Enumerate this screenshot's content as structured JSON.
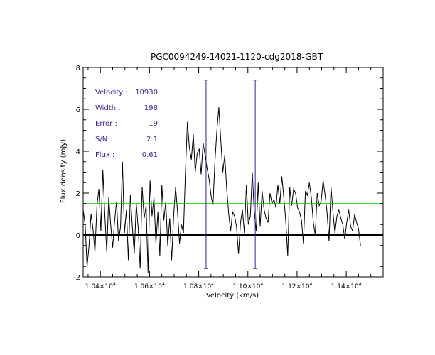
{
  "chart_data": {
    "type": "line",
    "title": "PGC0094249-14021-1120-cdg2018-GBT",
    "xlabel": "Velocity (km/s)",
    "ylabel": "Flux density (mJy)",
    "xlim": [
      10330,
      11550
    ],
    "ylim": [
      -2,
      8
    ],
    "x_ticks": [
      {
        "value": 10400,
        "mantissa": "1.04",
        "exp": "4"
      },
      {
        "value": 10600,
        "mantissa": "1.06",
        "exp": "4"
      },
      {
        "value": 10800,
        "mantissa": "1.08",
        "exp": "4"
      },
      {
        "value": 11000,
        "mantissa": "1.10",
        "exp": "4"
      },
      {
        "value": 11200,
        "mantissa": "1.12",
        "exp": "4"
      },
      {
        "value": 11400,
        "mantissa": "1.14",
        "exp": "4"
      }
    ],
    "y_ticks": [
      -2,
      0,
      2,
      4,
      6,
      8
    ],
    "info": [
      {
        "label": "Velocity :",
        "value": "10930"
      },
      {
        "label": "Width :",
        "value": "198"
      },
      {
        "label": "Error :",
        "value": "19"
      },
      {
        "label": "S/N :",
        "value": "2.1"
      },
      {
        "label": "Flux :",
        "value": "0.61"
      }
    ],
    "baseline_y": 0,
    "rms_line_y": 1.5,
    "markers": [
      {
        "x": 10830,
        "y_top": 7.4,
        "y_bottom": -1.6
      },
      {
        "x": 11030,
        "y_top": 7.4,
        "y_bottom": -1.6
      }
    ],
    "spectrum": {
      "x_start": 10330,
      "x_step": 8,
      "y": [
        1.2,
        0.5,
        -1.5,
        -0.5,
        1.0,
        0.3,
        -0.8,
        1.4,
        2.2,
        0.2,
        3.1,
        1.0,
        -0.8,
        1.8,
        0.5,
        -0.6,
        0.7,
        1.6,
        -0.3,
        0.4,
        3.5,
        0.1,
        1.2,
        -1.2,
        1.9,
        0.4,
        -0.9,
        1.5,
        0.3,
        -1.6,
        2.3,
        0.8,
        1.4,
        -1.8,
        2.6,
        0.9,
        1.8,
        -0.4,
        1.1,
        -1.0,
        2.4,
        0.7,
        1.6,
        -0.5,
        0.8,
        -1.2,
        0.9,
        2.3,
        1.1,
        -0.4,
        0.5,
        0.1,
        3.0,
        5.4,
        4.2,
        3.6,
        4.8,
        3.0,
        3.9,
        4.1,
        2.9,
        4.4,
        3.8,
        3.2,
        2.7,
        1.9,
        1.4,
        3.5,
        5.0,
        6.1,
        4.5,
        3.0,
        3.8,
        2.2,
        1.0,
        0.2,
        1.1,
        0.9,
        0.4,
        -0.9,
        0.6,
        1.2,
        0.1,
        2.4,
        0.5,
        0.9,
        3.0,
        1.1,
        0.2,
        2.5,
        0.4,
        2.1,
        1.2,
        0.8,
        0.6,
        2.0,
        1.5,
        1.7,
        1.3,
        2.4,
        1.5,
        2.8,
        1.8,
        0.7,
        -1.0,
        2.3,
        1.4,
        2.2,
        2.0,
        1.3,
        1.1,
        0.7,
        -0.4,
        2.1,
        1.9,
        2.5,
        1.8,
        0.6,
        0.0,
        2.0,
        1.4,
        1.6,
        2.6,
        1.9,
        1.1,
        -0.3,
        2.3,
        1.1,
        0.1,
        0.9,
        1.2,
        0.8,
        0.5,
        -0.2,
        0.6,
        1.2,
        0.4,
        0.2,
        1.0,
        0.6,
        0.3,
        -0.5
      ]
    },
    "colors": {
      "axis": "#000000",
      "spectrum": "#000000",
      "baseline": "#000000",
      "rms_line": "#00c000",
      "markers": "#3a19a8",
      "info_text": "#3a19a8"
    }
  }
}
